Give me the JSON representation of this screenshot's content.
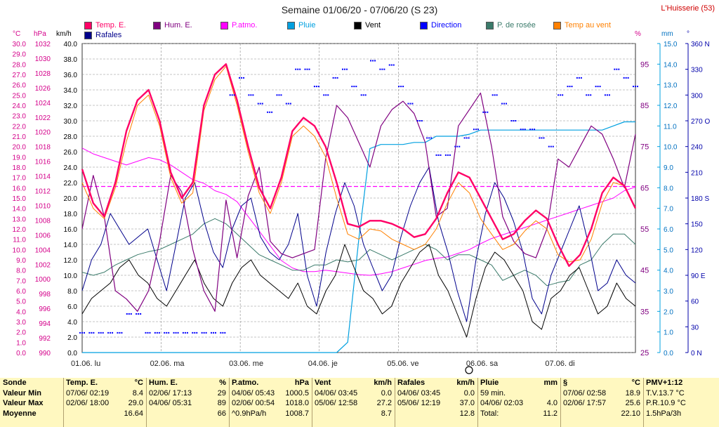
{
  "title": "Semaine 01/06/20 - 07/06/20 (S 23)",
  "station": "L'Huisserie (53)",
  "colors": {
    "temp": "#ff0066",
    "hum": "#800080",
    "patmo": "#ff00ff",
    "pluie": "#00a0e0",
    "vent": "#000000",
    "direction": "#0000ff",
    "rosee": "#3a7a6a",
    "tempvent": "#ff8000",
    "rafales": "#00008b",
    "grid": "#8a8a8a"
  },
  "legend": [
    {
      "label": "Temp. E.",
      "color": "#ff0066"
    },
    {
      "label": "Hum. E.",
      "color": "#800080"
    },
    {
      "label": "P.atmo.",
      "color": "#ff00ff"
    },
    {
      "label": "Pluie",
      "color": "#00a0e0"
    },
    {
      "label": "Vent",
      "color": "#000000"
    },
    {
      "label": "Direction",
      "color": "#0000ff"
    },
    {
      "label": "P. de rosée",
      "color": "#3a7a6a"
    },
    {
      "label": "Temp au vent",
      "color": "#ff8000"
    },
    {
      "label": "Rafales",
      "color": "#00008b"
    }
  ],
  "chart_data": {
    "type": "line",
    "title": "Semaine 01/06/20 - 07/06/20 (S 23)",
    "x_labels": [
      "01.06. lu",
      "02.06. ma",
      "03.06. me",
      "04.06. je",
      "05.06. ve",
      "06.06. sa",
      "07.06. di"
    ],
    "axes": {
      "temp": {
        "unit": "°C",
        "min": 0,
        "max": 30,
        "step": 1
      },
      "pressure": {
        "unit": "hPa",
        "min": 990,
        "max": 1032,
        "step": 2
      },
      "wind": {
        "unit": "km/h",
        "min": 0,
        "max": 40,
        "step": 2
      },
      "hum": {
        "unit": "%",
        "min": 25,
        "max": 100,
        "labels": [
          35,
          45,
          55,
          65,
          75,
          85,
          95
        ]
      },
      "rain": {
        "unit": "mm",
        "min": 0,
        "max": 15,
        "step": 1
      },
      "dir": {
        "unit": "°",
        "min": 0,
        "max": 360,
        "labels": [
          "0 N",
          "30",
          "60",
          "90 E",
          "120",
          "150",
          "180 S",
          "210",
          "240",
          "270 O",
          "300",
          "330",
          "360 N"
        ]
      }
    },
    "series": [
      {
        "name": "Temp. E.",
        "axis": "temp",
        "values": [
          17.8,
          14.5,
          13.2,
          16.5,
          21.5,
          24.5,
          25.5,
          22.5,
          17.5,
          15.0,
          16.5,
          24.0,
          27.0,
          28.0,
          24.5,
          20.0,
          16.0,
          14.0,
          17.0,
          21.5,
          22.8,
          22.0,
          20.0,
          16.5,
          12.5,
          12.2,
          12.8,
          12.8,
          12.5,
          12.0,
          11.2,
          11.5,
          13.0,
          15.5,
          17.5,
          17.0,
          15.0,
          13.0,
          11.0,
          11.5,
          12.8,
          13.8,
          13.0,
          10.5,
          8.4,
          9.5,
          12.0,
          15.5,
          17.0,
          16.2,
          14.0
        ]
      },
      {
        "name": "Temp au vent",
        "axis": "temp",
        "values": [
          16.5,
          14.0,
          13.0,
          16.0,
          20.5,
          24.0,
          25.0,
          22.0,
          17.0,
          14.5,
          15.5,
          23.5,
          26.5,
          27.8,
          24.0,
          19.5,
          15.5,
          13.5,
          16.5,
          21.0,
          22.0,
          21.0,
          19.0,
          15.0,
          11.5,
          11.0,
          12.0,
          11.8,
          11.0,
          10.5,
          10.0,
          10.5,
          12.0,
          14.5,
          16.5,
          15.5,
          13.0,
          11.5,
          10.0,
          10.5,
          11.8,
          12.8,
          12.0,
          9.5,
          8.8,
          9.0,
          11.0,
          14.5,
          16.5,
          16.2,
          14.0
        ]
      },
      {
        "name": "P. de rosée",
        "axis": "temp",
        "values": [
          7.8,
          7.5,
          7.8,
          8.5,
          9.0,
          9.5,
          9.8,
          10.0,
          10.5,
          11.0,
          11.5,
          12.5,
          13.0,
          12.5,
          11.5,
          10.5,
          9.5,
          9.0,
          8.5,
          8.0,
          8.0,
          8.5,
          8.5,
          9.0,
          8.8,
          9.0,
          10.0,
          9.5,
          9.0,
          9.5,
          10.0,
          10.5,
          10.0,
          9.0,
          9.5,
          9.5,
          9.0,
          8.5,
          7.0,
          7.5,
          8.0,
          7.5,
          6.5,
          6.8,
          7.0,
          8.5,
          9.0,
          10.5,
          11.5,
          11.5,
          10.5
        ]
      },
      {
        "name": "Hum. E.",
        "axis": "hum",
        "values": [
          55,
          68,
          58,
          40,
          38,
          35,
          40,
          52,
          68,
          64,
          50,
          40,
          35,
          62,
          48,
          63,
          70,
          52,
          49,
          48,
          49,
          50,
          72,
          85,
          82,
          76,
          70,
          80,
          84,
          86,
          83,
          76,
          58,
          60,
          80,
          84,
          88,
          75,
          58,
          52,
          49,
          48,
          55,
          72,
          70,
          75,
          80,
          78,
          72,
          65,
          78
        ]
      },
      {
        "name": "P.atmo.",
        "axis": "pressure",
        "values": [
          1017.8,
          1017.0,
          1016.5,
          1016.0,
          1015.5,
          1016.0,
          1016.5,
          1016.2,
          1015.5,
          1014.5,
          1013.5,
          1013.0,
          1012.0,
          1011.5,
          1010.5,
          1008.5,
          1006.5,
          1004.5,
          1002.5,
          1001.5,
          1001.0,
          1001.0,
          1001.2,
          1001.0,
          1000.8,
          1000.6,
          1000.5,
          1000.7,
          1001.0,
          1001.5,
          1002.0,
          1002.5,
          1002.8,
          1003.0,
          1003.5,
          1004.0,
          1004.8,
          1005.5,
          1006.0,
          1006.5,
          1007.0,
          1007.5,
          1008.0,
          1008.5,
          1009.0,
          1009.5,
          1010.0,
          1010.5,
          1011.0,
          1012.0,
          1012.5
        ]
      },
      {
        "name": "Vent",
        "axis": "wind",
        "values": [
          5,
          7,
          8,
          9,
          11,
          12,
          10,
          9,
          7,
          6,
          8,
          10,
          12,
          9,
          7,
          6,
          9,
          11,
          12,
          10,
          9,
          8,
          7,
          9,
          6,
          5,
          8,
          10,
          14,
          11,
          8,
          7,
          5,
          6,
          9,
          11,
          13,
          14,
          10,
          8,
          5,
          2,
          7,
          11,
          13,
          12,
          10,
          8,
          4,
          3,
          7,
          8,
          10,
          11,
          8,
          5,
          6,
          9,
          7,
          6
        ]
      },
      {
        "name": "Rafales",
        "axis": "wind",
        "values": [
          8,
          12,
          14,
          18,
          16,
          14,
          15,
          16,
          12,
          8,
          14,
          20,
          22,
          17,
          13,
          11,
          16,
          19,
          20,
          15,
          13,
          12,
          14,
          18,
          10,
          6,
          13,
          18,
          22,
          19,
          14,
          11,
          8,
          10,
          15,
          19,
          22,
          24,
          17,
          13,
          8,
          4,
          12,
          18,
          22,
          20,
          17,
          13,
          7,
          5,
          10,
          13,
          16,
          19,
          14,
          8,
          9,
          12,
          10,
          9
        ]
      },
      {
        "name": "Pluie",
        "axis": "rain",
        "values": [
          0,
          0,
          0,
          0,
          0,
          0,
          0,
          0,
          0,
          0,
          0,
          0,
          0,
          0,
          0,
          0,
          0,
          0,
          0,
          0,
          0,
          0,
          0,
          0,
          0.5,
          5.5,
          9.9,
          10.1,
          10.1,
          10.1,
          10.2,
          10.2,
          10.5,
          10.5,
          10.5,
          10.6,
          10.8,
          10.8,
          10.8,
          10.8,
          10.8,
          10.8,
          10.8,
          10.8,
          10.8,
          10.8,
          10.8,
          10.8,
          11.0,
          11.2,
          11.2
        ]
      },
      {
        "name": "Direction",
        "axis": "dir",
        "values": [
          23,
          23,
          23,
          23,
          23,
          45,
          45,
          23,
          23,
          23,
          23,
          23,
          23,
          23,
          23,
          23,
          300,
          320,
          300,
          290,
          280,
          300,
          290,
          330,
          330,
          310,
          300,
          320,
          330,
          310,
          300,
          340,
          330,
          335,
          310,
          290,
          270,
          250,
          230,
          230,
          240,
          250,
          260,
          280,
          300,
          290,
          270,
          260,
          260,
          250,
          240,
          300,
          310,
          320,
          300,
          310,
          300,
          330,
          320,
          310
        ]
      }
    ],
    "reference_line": {
      "axis": "wind",
      "value": 21.5,
      "color": "#ff00ff"
    }
  },
  "summary": {
    "cols": [
      {
        "header": [
          "Sonde",
          ""
        ],
        "rows": [
          [
            "Valeur Min",
            ""
          ],
          [
            "Valeur Max",
            ""
          ],
          [
            "Moyenne",
            ""
          ]
        ]
      },
      {
        "header": [
          "Temp. E.",
          "°C"
        ],
        "rows": [
          [
            "07/06/  02:19",
            "8.4"
          ],
          [
            "02/06/  18:00",
            "29.0"
          ],
          [
            "",
            "16.64"
          ]
        ]
      },
      {
        "header": [
          "Hum. E.",
          "%"
        ],
        "rows": [
          [
            "02/06/  17:13",
            "29"
          ],
          [
            "04/06/  05:31",
            "89"
          ],
          [
            "",
            "66"
          ]
        ]
      },
      {
        "header": [
          "P.atmo.",
          "hPa"
        ],
        "rows": [
          [
            "04/06/  05:43",
            "1000.5"
          ],
          [
            "02/06/  00:54",
            "1018.0"
          ],
          [
            "^0.9hPa/h",
            "1008.7"
          ]
        ]
      },
      {
        "header": [
          "Vent",
          "km/h"
        ],
        "rows": [
          [
            "04/06/  03:45",
            "0.0"
          ],
          [
            "05/06/  12:58",
            "27.2"
          ],
          [
            "",
            "8.7"
          ]
        ]
      },
      {
        "header": [
          "Rafales",
          "km/h"
        ],
        "rows": [
          [
            "04/06/  03:45",
            "0.0"
          ],
          [
            "05/06/  12:19",
            "37.0"
          ],
          [
            "",
            "12.8"
          ]
        ]
      },
      {
        "header": [
          "Pluie",
          "mm"
        ],
        "rows": [
          [
            "59 min.",
            ""
          ],
          [
            "04/06/  02:03",
            "4.0"
          ],
          [
            "Total:",
            "11.2"
          ]
        ]
      },
      {
        "header": [
          "§",
          "°C"
        ],
        "rows": [
          [
            "07/06/  02:58",
            "18.9"
          ],
          [
            "02/06/  17:57",
            "25.6"
          ],
          [
            "",
            "22.10"
          ]
        ]
      },
      {
        "header": [
          "PMV+1:12",
          ""
        ],
        "rows": [
          [
            "T.V.13.7 °C",
            ""
          ],
          [
            "P.R.10.9 °C",
            ""
          ],
          [
            "1.5hPa/3h",
            ""
          ]
        ]
      }
    ]
  }
}
